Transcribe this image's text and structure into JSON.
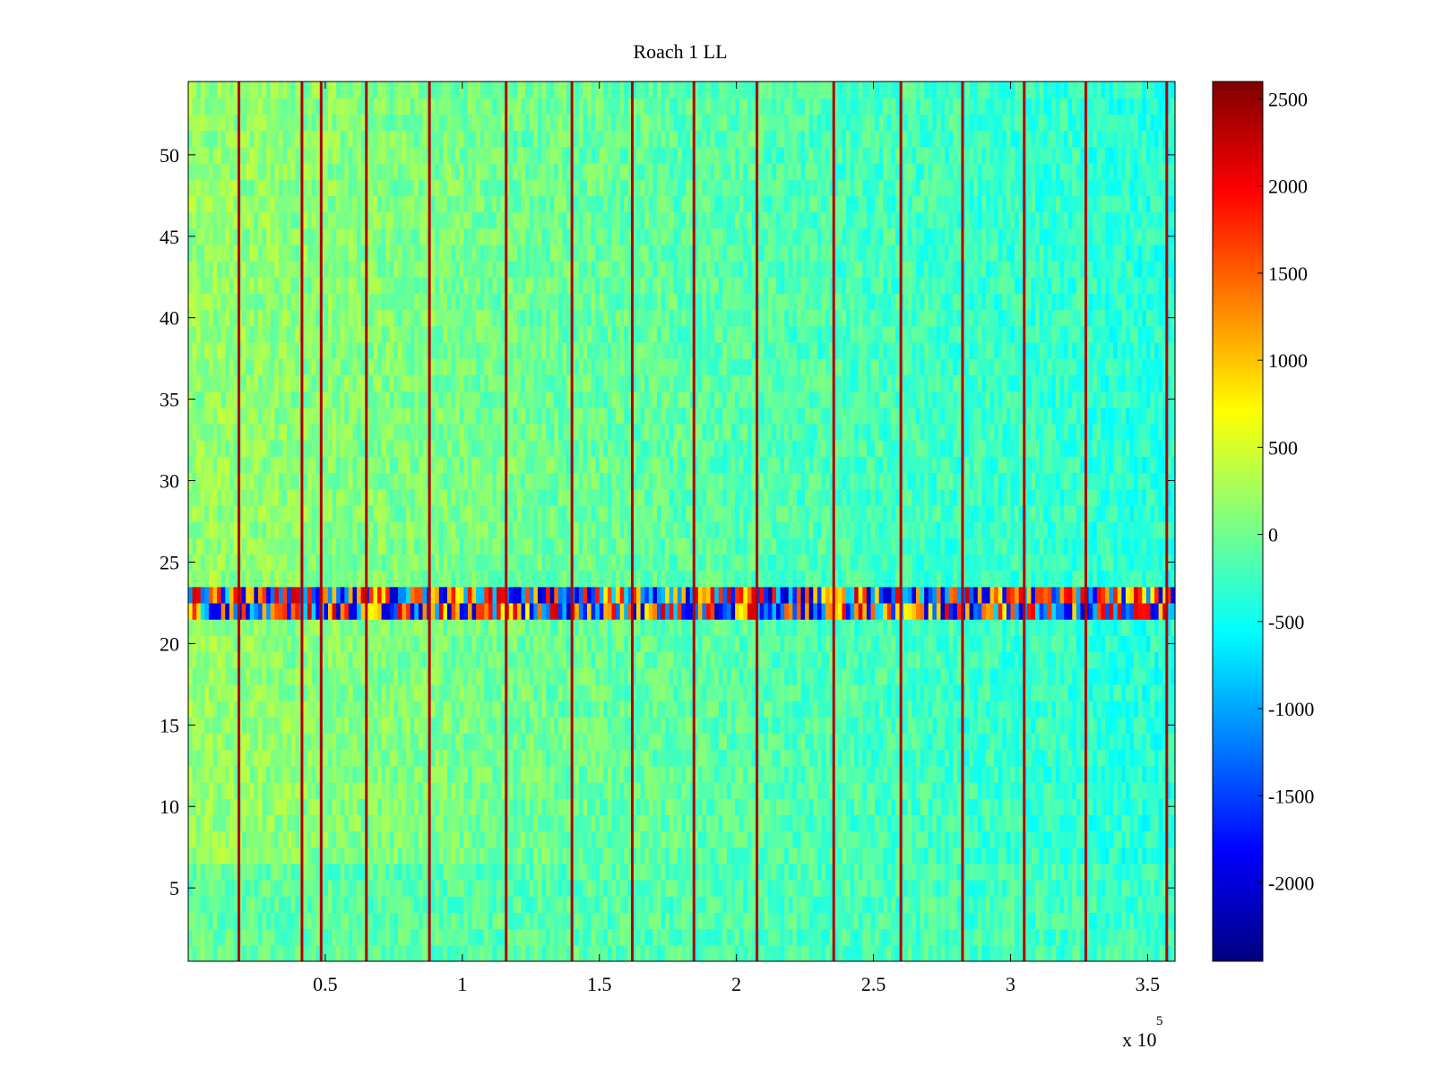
{
  "chart_data": {
    "type": "heatmap",
    "title": "Roach 1 LL",
    "xlabel": "",
    "ylabel": "",
    "x_exponent_label": "x 10",
    "x_exponent_power": "5",
    "xlim": [
      0,
      360000
    ],
    "ylim": [
      0.5,
      54.5
    ],
    "x_ticks": [
      50000,
      100000,
      150000,
      200000,
      250000,
      300000,
      350000
    ],
    "x_tick_labels": [
      "0.5",
      "1",
      "1.5",
      "2",
      "2.5",
      "3",
      "3.5"
    ],
    "y_ticks": [
      5,
      10,
      15,
      20,
      25,
      30,
      35,
      40,
      45,
      50
    ],
    "y_tick_labels": [
      "5",
      "10",
      "15",
      "20",
      "25",
      "30",
      "35",
      "40",
      "45",
      "50"
    ],
    "colorbar": {
      "colormap": "jet",
      "clim": [
        -2450,
        2600
      ],
      "ticks": [
        2500,
        2000,
        1500,
        1000,
        500,
        0,
        -500,
        -1000,
        -1500,
        -2000
      ],
      "tick_labels": [
        "2500",
        "2000",
        "1500",
        "1000",
        "500",
        "0",
        "-500",
        "-1000",
        "-1500",
        "-2000"
      ]
    },
    "rows": 54,
    "bright_vertical_lines_x": [
      18500,
      41500,
      48500,
      65000,
      88000,
      116000,
      140000,
      162000,
      184500,
      207500,
      235500,
      260000,
      282500,
      305000,
      327500,
      357000
    ],
    "high_variance_band_rows": [
      22,
      23
    ],
    "grid": false,
    "legend": "none"
  }
}
